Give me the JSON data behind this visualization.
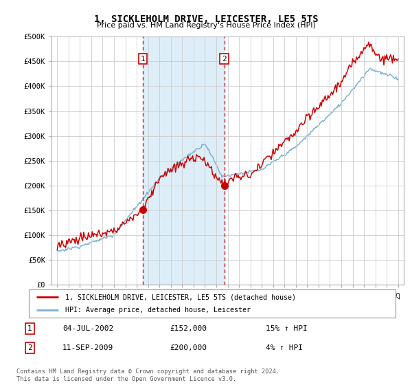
{
  "title": "1, SICKLEHOLM DRIVE, LEICESTER, LE5 5TS",
  "subtitle": "Price paid vs. HM Land Registry's House Price Index (HPI)",
  "background_color": "#ffffff",
  "plot_bg_color": "#ffffff",
  "grid_color": "#cccccc",
  "purchase1": {
    "date_x": 2002.55,
    "price": 152000,
    "label": "1"
  },
  "purchase2": {
    "date_x": 2009.7,
    "price": 200000,
    "label": "2"
  },
  "shade_x1": 2002.55,
  "shade_x2": 2009.7,
  "legend_entries": [
    "1, SICKLEHOLM DRIVE, LEICESTER, LE5 5TS (detached house)",
    "HPI: Average price, detached house, Leicester"
  ],
  "table_rows": [
    [
      "1",
      "04-JUL-2002",
      "£152,000",
      "15% ↑ HPI"
    ],
    [
      "2",
      "11-SEP-2009",
      "£200,000",
      "4% ↑ HPI"
    ]
  ],
  "footer": "Contains HM Land Registry data © Crown copyright and database right 2024.\nThis data is licensed under the Open Government Licence v3.0.",
  "red_color": "#cc0000",
  "blue_color": "#7ab0d4",
  "shade_fill": "#ddeef8",
  "ylim": [
    0,
    500000
  ],
  "xlim_start": 1994.5,
  "xlim_end": 2025.5
}
